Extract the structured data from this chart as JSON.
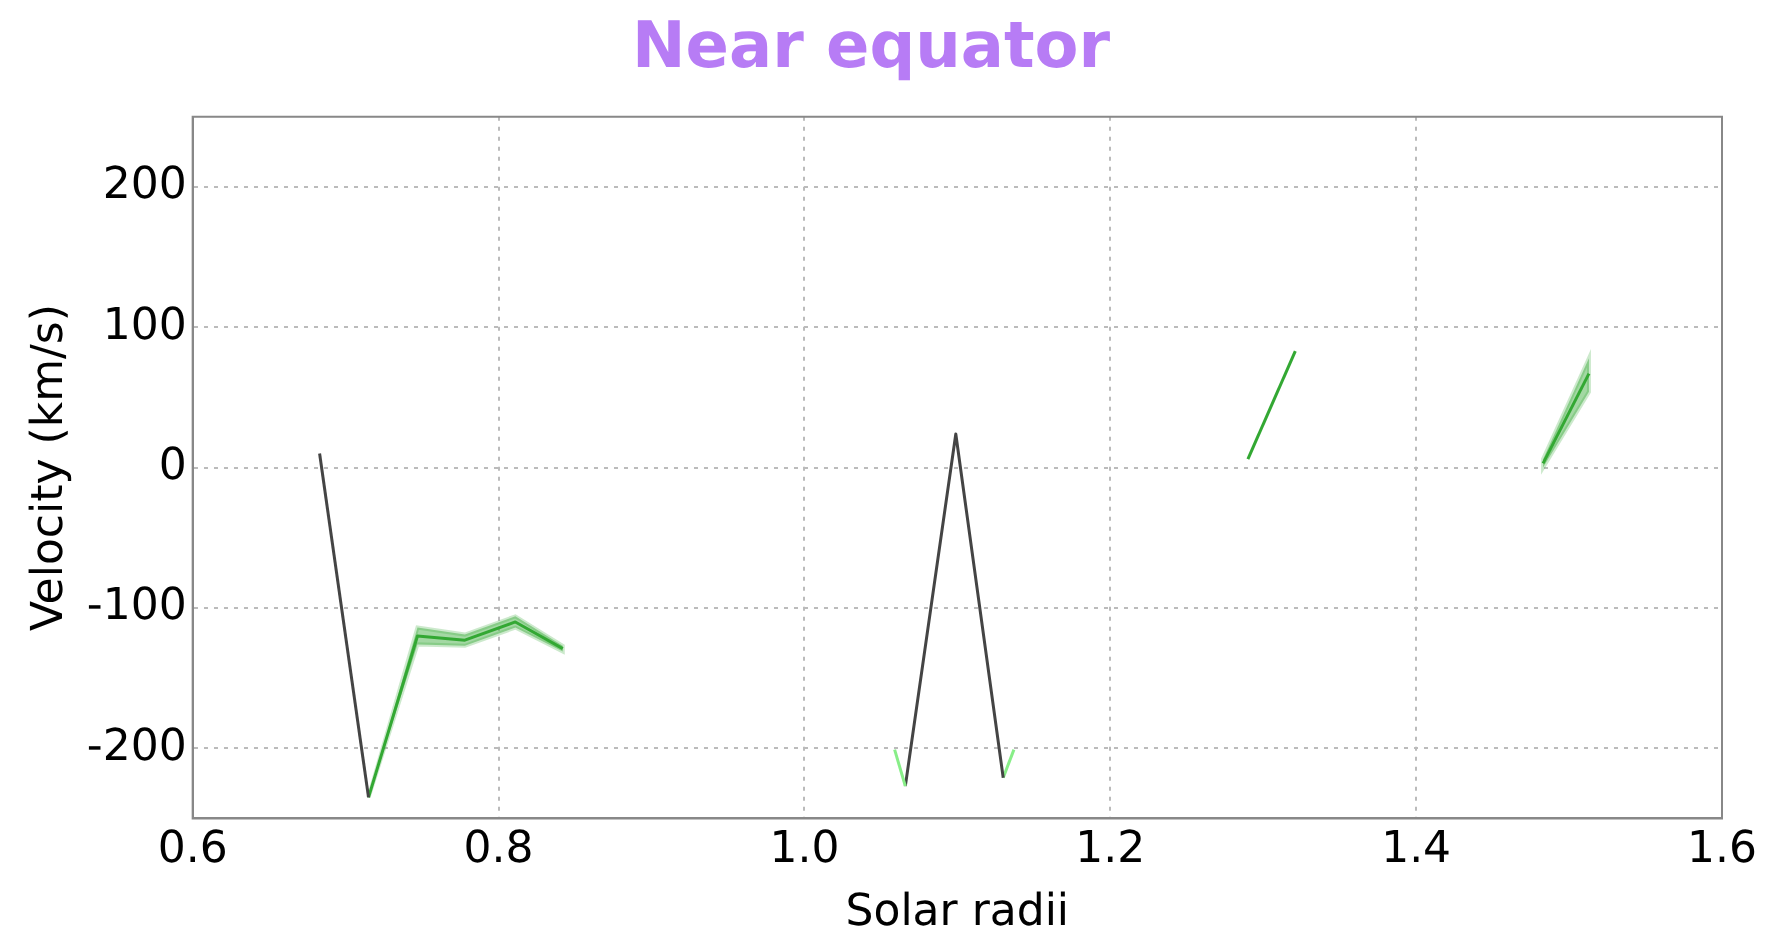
{
  "chart_data": {
    "type": "line",
    "title": "Near equator",
    "xlabel": "Solar radii",
    "ylabel": "Velocity (km/s)",
    "xlim": [
      0.6,
      1.6
    ],
    "xticks": [
      0.6,
      0.8,
      {
        "value": 1,
        "label": "1.0"
      },
      1.2,
      1.4,
      1.6
    ],
    "ylim": [
      -250,
      250
    ],
    "yticks": [
      -200,
      -100,
      0,
      100,
      200
    ],
    "grid": true,
    "legend": false,
    "marker": "none",
    "line_style": "solid",
    "series": [
      {
        "color": "#444444",
        "x": [
          0.683,
          0.715
        ],
        "values": [
          10,
          -235
        ]
      },
      {
        "color": "#33a833",
        "x": [
          0.715,
          0.747,
          0.778,
          0.811,
          0.842
        ],
        "values": [
          -235,
          -120,
          -123,
          -110,
          -129
        ],
        "lower": [
          -235,
          -126,
          -127,
          -114,
          -131
        ],
        "upper": [
          -235,
          -114,
          -119,
          -106,
          -127
        ]
      },
      {
        "color": "#88ee88",
        "x": [
          1.059,
          1.066
        ],
        "values": [
          -201,
          -227
        ]
      },
      {
        "color": "#444444",
        "x": [
          1.066,
          1.099,
          1.13
        ],
        "values": [
          -227,
          24,
          -221
        ]
      },
      {
        "color": "#88ee88",
        "x": [
          1.13,
          1.137
        ],
        "values": [
          -221,
          -201
        ]
      },
      {
        "color": "#33a833",
        "x": [
          1.29,
          1.321
        ],
        "values": [
          6,
          83
        ]
      },
      {
        "color": "#33a833",
        "x": [
          1.483,
          1.513
        ],
        "values": [
          3,
          67
        ],
        "lower": [
          0,
          54
        ],
        "upper": [
          6,
          78
        ]
      }
    ]
  }
}
